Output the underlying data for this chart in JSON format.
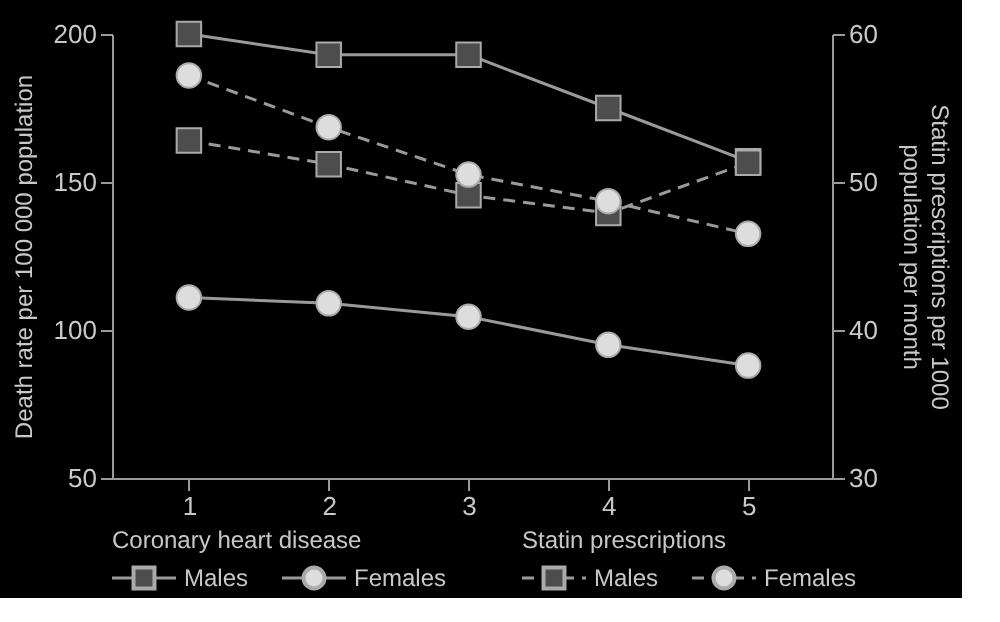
{
  "chart_data": {
    "type": "line",
    "x": [
      1,
      2,
      3,
      4,
      5
    ],
    "xlim": [
      0.45,
      5.6
    ],
    "xticks": [
      1,
      2,
      3,
      4,
      5
    ],
    "ylabel": "Death rate per 100 000 population",
    "y2label": "Statin prescriptions per 1000 population per month",
    "ylim": [
      50,
      200
    ],
    "yticks": [
      50,
      100,
      150,
      200
    ],
    "y2lim": [
      30,
      60
    ],
    "y2ticks": [
      30,
      40,
      50,
      60
    ],
    "grid": false,
    "legend": "bottom",
    "annotations": [
      "Coronary heart disease",
      "Statin prescriptions"
    ],
    "series": [
      {
        "name": "Males",
        "color": "#4d4d4d",
        "marker": "square",
        "line_style": "solid",
        "values": [
          200,
          193,
          193,
          175,
          157
        ]
      },
      {
        "name": "Females",
        "color": "#dddddd",
        "marker": "circle",
        "line_style": "solid",
        "values": [
          111,
          109,
          104.5,
          95,
          88
        ]
      },
      {
        "name": "Males",
        "color": "#4d4d4d",
        "marker": "square",
        "line_style": "dashed",
        "axis": "y2",
        "values": [
          52.8,
          51.2,
          49.1,
          47.9,
          51.3
        ]
      },
      {
        "name": "Females",
        "color": "#dddddd",
        "marker": "circle",
        "line_style": "dashed",
        "axis": "y2",
        "values": [
          57.2,
          53.7,
          50.5,
          48.7,
          46.5
        ]
      }
    ]
  }
}
